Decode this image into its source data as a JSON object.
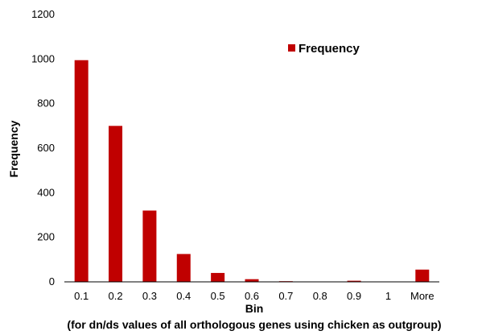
{
  "chart_data": {
    "type": "bar",
    "categories": [
      "0.1",
      "0.2",
      "0.3",
      "0.4",
      "0.5",
      "0.6",
      "0.7",
      "0.8",
      "0.9",
      "1",
      "More"
    ],
    "series": [
      {
        "name": "Frequency",
        "values": [
          995,
          700,
          320,
          125,
          40,
          12,
          3,
          0,
          5,
          0,
          55
        ]
      }
    ],
    "xlabel": "Bin",
    "xlabel_note": "(for dn/ds values of all orthologous genes using chicken as outgroup)",
    "ylabel": "Frequency",
    "ylim": [
      0,
      1200
    ],
    "yticks": [
      0,
      200,
      400,
      600,
      800,
      1000,
      1200
    ],
    "grid": false,
    "legend_position": "top-right",
    "bar_color": "#c00000"
  }
}
